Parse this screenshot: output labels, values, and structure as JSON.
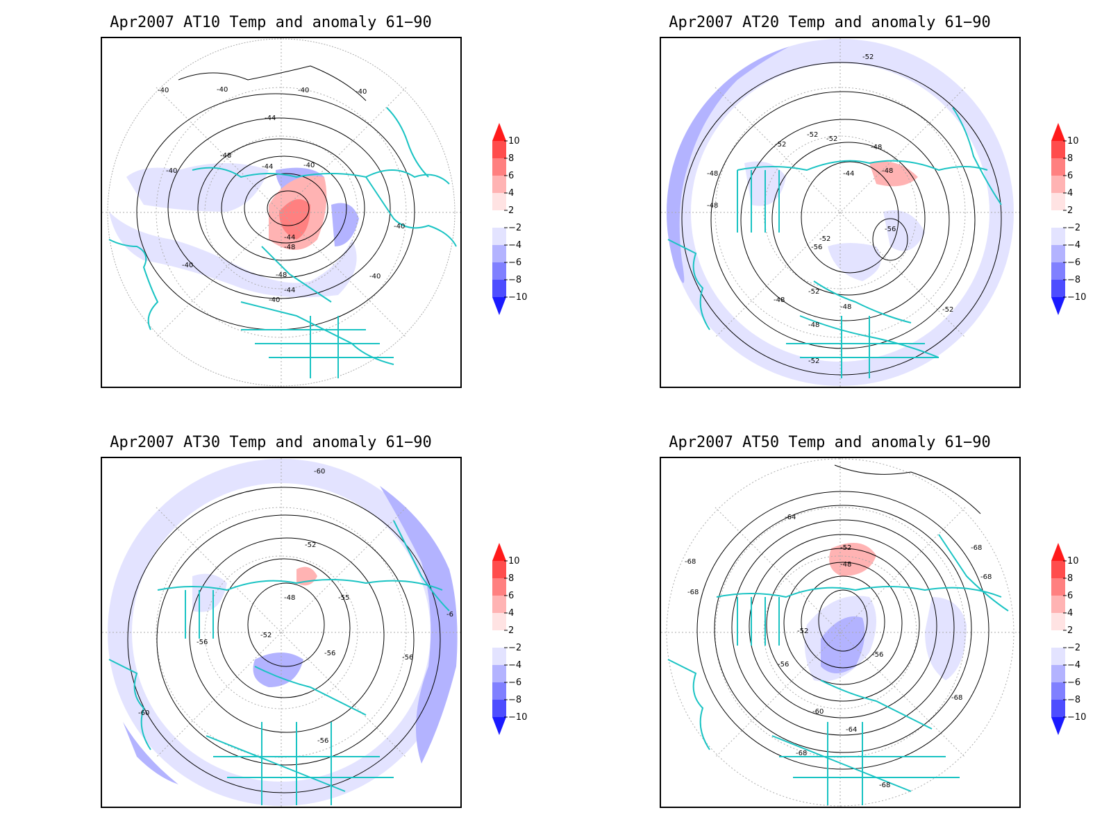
{
  "colorbar": {
    "labels": [
      "10",
      "8",
      "6",
      "4",
      "2",
      "−2",
      "−4",
      "−6",
      "−8",
      "−10"
    ],
    "colors": [
      "#ff1a1a",
      "#ff4d4d",
      "#ff8080",
      "#ffb3b3",
      "#ffe3e3",
      "#ffffff",
      "#e3e3ff",
      "#b3b3ff",
      "#8080ff",
      "#4d4dff",
      "#1a1aff"
    ],
    "arrow_top_color": "#ff1a1a",
    "arrow_bottom_color": "#1a1aff"
  },
  "colors": {
    "coast": "#19c3c3",
    "grid": "#aaaaaa",
    "contour": "#000000",
    "neg_light": "#e3e3ff",
    "neg_mid": "#b3b3ff",
    "pos_light": "#ffb3b3",
    "pos_mid": "#ff8080"
  },
  "panels": [
    {
      "title": "Apr2007 AT10 Temp and anomaly 61−90",
      "contour_labels": [
        "-40",
        "-40",
        "-40",
        "-40",
        "-44",
        "-48",
        "-40",
        "-44",
        "-40",
        "-44",
        "-48",
        "-40",
        "-40",
        "-48",
        "-44",
        "-40",
        "-40"
      ]
    },
    {
      "title": "Apr2007 AT20 Temp and anomaly 61−90",
      "contour_labels": [
        "-52",
        "-52",
        "-52",
        "-52",
        "-48",
        "-48",
        "-48",
        "-44",
        "-48",
        "-56",
        "-52",
        "-56",
        "-52",
        "-48",
        "-48",
        "-48",
        "-52",
        "-52"
      ]
    },
    {
      "title": "Apr2007 AT30 Temp and anomaly 61−90",
      "contour_labels": [
        "-60",
        "-52",
        "-48",
        "-55",
        "-52",
        "-56",
        "-56",
        "-56",
        "-60",
        "-56",
        "-6"
      ]
    },
    {
      "title": "Apr2007 AT50 Temp and anomaly 61−90",
      "contour_labels": [
        "-64",
        "-68",
        "-68",
        "-52",
        "-48",
        "-68",
        "-68",
        "-52",
        "-56",
        "-56",
        "-60",
        "-64",
        "-68",
        "-68",
        "-68"
      ]
    }
  ]
}
